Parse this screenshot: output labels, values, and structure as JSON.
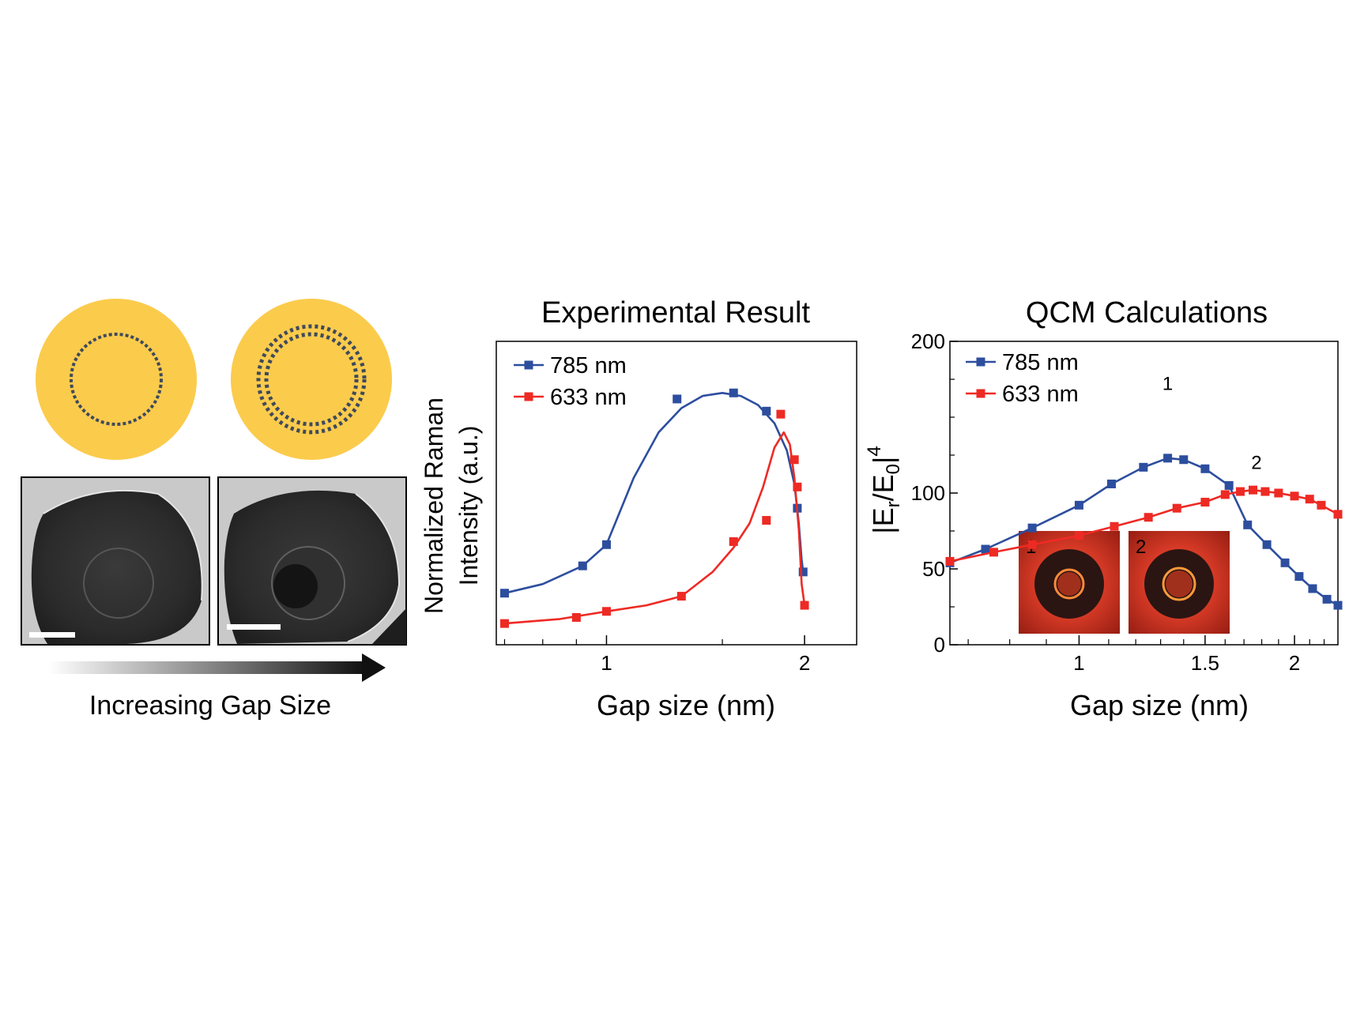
{
  "left_panel": {
    "caption": "Increasing Gap Size",
    "colors": {
      "gold": "#FBCB4C",
      "dash": "#3F4A5B",
      "arrow": "#111111"
    }
  },
  "colors": {
    "blue": "#2D4E9E",
    "red": "#EE2A24"
  },
  "chart_data": [
    {
      "type": "line",
      "title": "Experimental Result",
      "xlabel": "Gap size (nm)",
      "ylabel": [
        "Normalized Raman",
        "Intensity  (a.u.)"
      ],
      "x_scale": "log",
      "xlim": [
        0.68,
        2.4
      ],
      "ylim": [
        0,
        1.0
      ],
      "x_ticks": [
        1,
        2
      ],
      "x_minor": [
        0.7,
        0.8,
        0.9,
        3,
        4,
        5,
        6,
        7,
        8,
        9,
        1.5,
        2.5
      ],
      "legend": "top-left",
      "series": [
        {
          "name": "785 nm",
          "color": "#2D4E9E",
          "points": [
            [
              0.7,
              0.17
            ],
            [
              0.92,
              0.26
            ],
            [
              1.0,
              0.33
            ],
            [
              1.28,
              0.81
            ],
            [
              1.56,
              0.83
            ],
            [
              1.75,
              0.77
            ],
            [
              1.95,
              0.45
            ],
            [
              1.99,
              0.24
            ]
          ],
          "curve": [
            [
              0.7,
              0.17
            ],
            [
              0.8,
              0.2
            ],
            [
              0.92,
              0.26
            ],
            [
              1.0,
              0.33
            ],
            [
              1.1,
              0.55
            ],
            [
              1.2,
              0.7
            ],
            [
              1.3,
              0.78
            ],
            [
              1.4,
              0.82
            ],
            [
              1.5,
              0.83
            ],
            [
              1.6,
              0.82
            ],
            [
              1.7,
              0.79
            ],
            [
              1.8,
              0.73
            ],
            [
              1.88,
              0.64
            ],
            [
              1.93,
              0.53
            ],
            [
              1.96,
              0.4
            ],
            [
              1.98,
              0.28
            ],
            [
              1.99,
              0.24
            ]
          ]
        },
        {
          "name": "633 nm",
          "color": "#EE2A24",
          "points": [
            [
              0.7,
              0.07
            ],
            [
              0.9,
              0.09
            ],
            [
              1.0,
              0.11
            ],
            [
              1.3,
              0.16
            ],
            [
              1.56,
              0.34
            ],
            [
              1.75,
              0.41
            ],
            [
              1.84,
              0.76
            ],
            [
              1.93,
              0.61
            ],
            [
              1.95,
              0.52
            ],
            [
              2.0,
              0.13
            ]
          ],
          "curve": [
            [
              0.7,
              0.07
            ],
            [
              0.85,
              0.085
            ],
            [
              1.0,
              0.11
            ],
            [
              1.15,
              0.13
            ],
            [
              1.3,
              0.16
            ],
            [
              1.45,
              0.24
            ],
            [
              1.56,
              0.32
            ],
            [
              1.65,
              0.4
            ],
            [
              1.73,
              0.52
            ],
            [
              1.8,
              0.65
            ],
            [
              1.86,
              0.7
            ],
            [
              1.9,
              0.66
            ],
            [
              1.93,
              0.55
            ],
            [
              1.96,
              0.38
            ],
            [
              1.98,
              0.2
            ],
            [
              2.0,
              0.13
            ]
          ]
        }
      ]
    },
    {
      "type": "line",
      "title": "QCM Calculations",
      "xlabel": "Gap size (nm)",
      "ylabel": "|Er/E0|4",
      "x_scale": "log",
      "xlim": [
        0.66,
        2.3
      ],
      "ylim": [
        0,
        200
      ],
      "y_ticks": [
        0,
        50,
        100,
        200
      ],
      "x_ticks": [
        1,
        1.5,
        2
      ],
      "x_minor": [
        0.7,
        0.8,
        0.9,
        1.1,
        1.2,
        1.3,
        1.4,
        1.6,
        1.7,
        1.8,
        1.9,
        2.1,
        2.2
      ],
      "legend": "top-left",
      "annotations": [
        {
          "text": "1",
          "x": 1.33,
          "y": 168
        },
        {
          "text": "2",
          "x": 1.77,
          "y": 116
        }
      ],
      "inset_labels": [
        "1",
        "2"
      ],
      "series": [
        {
          "name": "785 nm",
          "color": "#2D4E9E",
          "points": [
            [
              0.66,
              54
            ],
            [
              0.74,
              63
            ],
            [
              0.86,
              77
            ],
            [
              1.0,
              92
            ],
            [
              1.11,
              106
            ],
            [
              1.23,
              117
            ],
            [
              1.33,
              123
            ],
            [
              1.4,
              122
            ],
            [
              1.5,
              116
            ],
            [
              1.62,
              105
            ],
            [
              1.72,
              79
            ],
            [
              1.83,
              66
            ],
            [
              1.94,
              54
            ],
            [
              2.03,
              45
            ],
            [
              2.12,
              37
            ],
            [
              2.22,
              30
            ],
            [
              2.3,
              26
            ]
          ],
          "curve": [
            [
              0.66,
              54
            ],
            [
              0.74,
              63
            ],
            [
              0.86,
              77
            ],
            [
              1.0,
              92
            ],
            [
              1.11,
              106
            ],
            [
              1.23,
              117
            ],
            [
              1.33,
              123
            ],
            [
              1.4,
              122
            ],
            [
              1.5,
              116
            ],
            [
              1.62,
              105
            ],
            [
              1.72,
              79
            ],
            [
              1.83,
              66
            ],
            [
              1.94,
              54
            ],
            [
              2.03,
              45
            ],
            [
              2.12,
              37
            ],
            [
              2.22,
              30
            ],
            [
              2.3,
              26
            ]
          ]
        },
        {
          "name": "633 nm",
          "color": "#EE2A24",
          "points": [
            [
              0.66,
              55
            ],
            [
              0.76,
              61
            ],
            [
              0.86,
              66
            ],
            [
              1.0,
              72
            ],
            [
              1.12,
              78
            ],
            [
              1.25,
              84
            ],
            [
              1.37,
              90
            ],
            [
              1.5,
              94
            ],
            [
              1.6,
              99
            ],
            [
              1.68,
              101
            ],
            [
              1.75,
              102
            ],
            [
              1.82,
              101
            ],
            [
              1.9,
              100
            ],
            [
              2.0,
              98
            ],
            [
              2.1,
              96
            ],
            [
              2.18,
              92
            ],
            [
              2.3,
              86
            ]
          ],
          "curve": [
            [
              0.66,
              55
            ],
            [
              0.76,
              61
            ],
            [
              0.86,
              66
            ],
            [
              1.0,
              72
            ],
            [
              1.12,
              78
            ],
            [
              1.25,
              84
            ],
            [
              1.37,
              90
            ],
            [
              1.5,
              94
            ],
            [
              1.6,
              99
            ],
            [
              1.68,
              101
            ],
            [
              1.75,
              102
            ],
            [
              1.82,
              101
            ],
            [
              1.9,
              100
            ],
            [
              2.0,
              98
            ],
            [
              2.1,
              96
            ],
            [
              2.18,
              92
            ],
            [
              2.3,
              86
            ]
          ]
        }
      ]
    }
  ]
}
